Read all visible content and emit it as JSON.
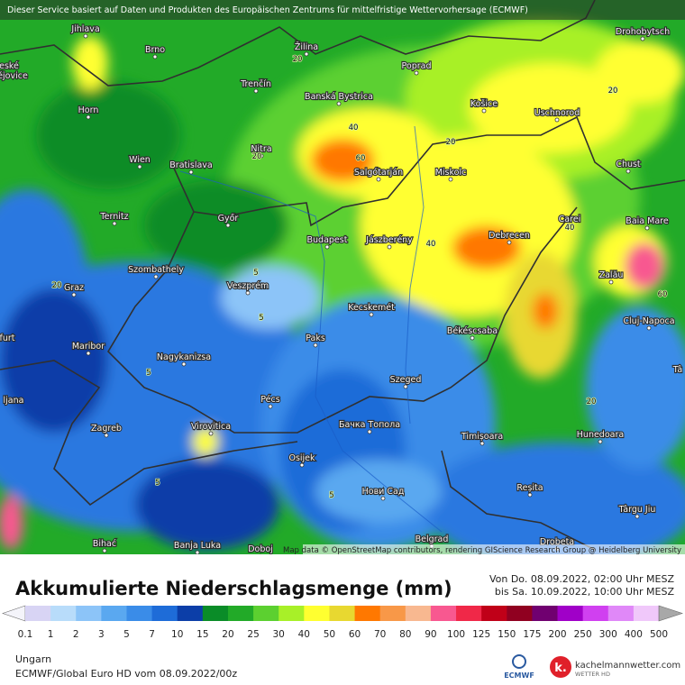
{
  "header": {
    "disclaimer": "Dieser Service basiert auf Daten und Produkten des Europäischen Zentrums für mittelfristige Wettervorhersage (ECMWF)"
  },
  "map": {
    "cities": [
      "Jihlava",
      "Brno",
      "Žilina",
      "Poprad",
      "Drohobytsch",
      "Trenčín",
      "Banská Bystrica",
      "Košice",
      "Uschnorod",
      "Horn",
      "Nitra",
      "Wien",
      "Bratislava",
      "Salgótarján",
      "Miskolc",
      "Chust",
      "Ternitz",
      "Győr",
      "Budapest",
      "Jászberény",
      "Debrecen",
      "Carei",
      "Baia Mare",
      "Zalău",
      "Szombathely",
      "Veszprém",
      "Graz",
      "Cluj-Napoca",
      "Kecskemét",
      "Békéscsaba",
      "Maribor",
      "Paks",
      "Nagykanizsa",
      "Szeged",
      "Zagreb",
      "Pécs",
      "Virovitica",
      "Бачка Топола",
      "Timișoara",
      "Hunedoara",
      "Osijek",
      "Нови Сад",
      "Reșita",
      "Târgu Jiu",
      "Belgrad",
      "Bihać",
      "Banja Luka",
      "Doboj",
      "Drobeta",
      "eské",
      "ějovice",
      "furt",
      "ljana",
      "Tâ"
    ],
    "contour_labels": [
      "20",
      "20",
      "40",
      "60",
      "20",
      "20",
      "40",
      "40",
      "60",
      "5",
      "5",
      "20",
      "5",
      "20",
      "5",
      "5"
    ],
    "attribution": "Map data © OpenStreetMap contributors, rendering GIScience Research Group @ Heidelberg University"
  },
  "legend": {
    "title": "Akkumulierte Niederschlagsmenge (mm)",
    "period": [
      "Von Do. 08.09.2022, 02:00 Uhr MESZ",
      "bis Sa. 10.09.2022, 10:00 Uhr MESZ"
    ],
    "labels": [
      "0.1",
      "1",
      "2",
      "3",
      "5",
      "7",
      "10",
      "15",
      "20",
      "25",
      "30",
      "40",
      "50",
      "60",
      "70",
      "80",
      "90",
      "100",
      "125",
      "150",
      "175",
      "200",
      "250",
      "300",
      "400",
      "500"
    ],
    "colors": [
      "#f4f4fa",
      "#d8d4f4",
      "#b8dcfa",
      "#8cc4f8",
      "#5aa8f0",
      "#3a8ce8",
      "#1e6cd8",
      "#0c3ea8",
      "#0a8c28",
      "#22aa28",
      "#5cd030",
      "#a8f028",
      "#ffff30",
      "#e8d830",
      "#ff7800",
      "#f89848",
      "#f8b890",
      "#f85890",
      "#f02848",
      "#c00018",
      "#900020",
      "#700070",
      "#a000c8",
      "#d040f0",
      "#e088f8",
      "#f0c8fa",
      "#a8a8a8"
    ]
  },
  "footer": {
    "region": "Ungarn",
    "model": "ECMWF/Global Euro HD vom  08.09.2022/00z",
    "ecmwf_logo": "ECMWF",
    "brand": "kachelmannwetter.com",
    "brand_sub": "WETTER HD"
  }
}
